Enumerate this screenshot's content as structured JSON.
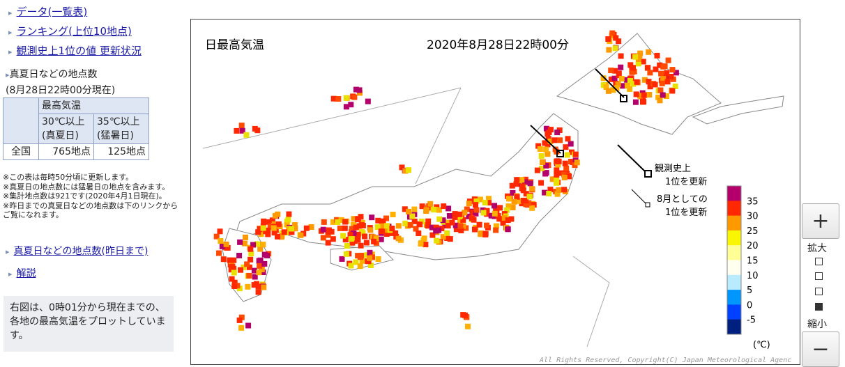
{
  "sidebar": {
    "links": [
      "データ(一覧表)",
      "ランキング(上位10地点)",
      "観測史上1位の値 更新状況"
    ],
    "count_title": "真夏日などの地点数",
    "count_time": "(8月28日22時00分現在)",
    "table": {
      "header": "最高気温",
      "subheaders": [
        [
          "30℃以上",
          "(真夏日)"
        ],
        [
          "35℃以上",
          "(猛暑日)"
        ]
      ],
      "rows": [
        [
          "全国",
          "765地点",
          "125地点"
        ]
      ]
    },
    "notes": [
      "※この表は毎時50分頃に更新します。",
      "※真夏日の地点数には猛暑日の地点を含みます。",
      "※集計地点数は921です(2020年4月1日現在)。",
      "※昨日までの真夏日などの地点数は下のリンクからご覧になれます。"
    ],
    "link_yesterday": "真夏日などの地点数(昨日まで)",
    "link_explain": "解説",
    "description": "右図は、0時01分から現在までの、各地の最高気温をプロットしています。"
  },
  "map": {
    "title": "日最高気温",
    "datetime": "2020年8月28日22時00分",
    "annotations": [
      [
        "観測史上",
        "1位を更新"
      ],
      [
        "8月としての",
        "1位を更新"
      ]
    ],
    "legend": {
      "labels": [
        "35",
        "30",
        "25",
        "20",
        "15",
        "10",
        "5",
        "0",
        "-5"
      ],
      "colors": [
        "#b4006b",
        "#ff2800",
        "#ff9900",
        "#faf500",
        "#ffff96",
        "#fffff0",
        "#b9ebff",
        "#0096ff",
        "#0041ff",
        "#002080"
      ],
      "unit": "(℃)"
    },
    "copyright": "All Rights Reserved, Copyright(C) Japan Meteorological Agenc"
  },
  "zoom": {
    "in_label": "拡大",
    "out_label": "縮小"
  }
}
